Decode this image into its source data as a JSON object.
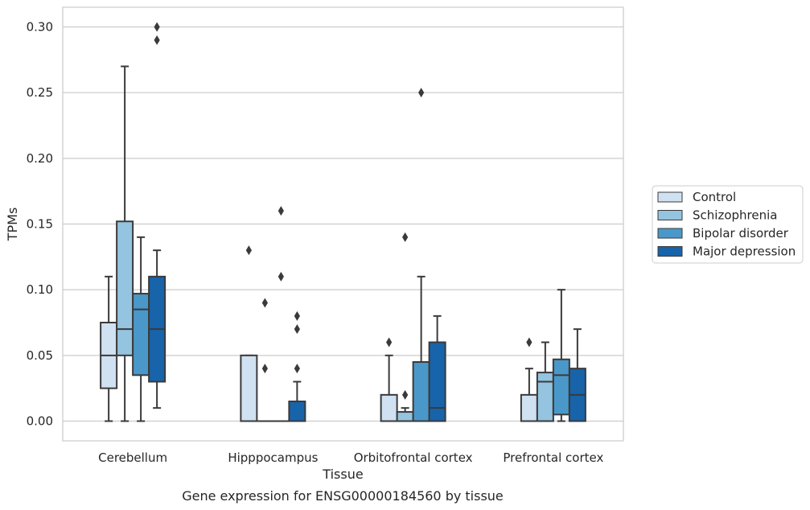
{
  "chart_data": {
    "type": "box",
    "caption": "Gene expression for ENSG00000184560 by tissue",
    "xlabel": "Tissue",
    "ylabel": "TPMs",
    "ylim": [
      -0.015,
      0.315
    ],
    "yticks": [
      "0.00",
      "0.05",
      "0.10",
      "0.15",
      "0.20",
      "0.25",
      "0.30"
    ],
    "ytick_values": [
      0,
      0.05,
      0.1,
      0.15,
      0.2,
      0.25,
      0.3
    ],
    "grid": "horizontal",
    "legend_position": "right",
    "categories": [
      "Cerebellum",
      "Hipppocampus",
      "Orbitofrontal cortex",
      "Prefrontal cortex"
    ],
    "series": [
      {
        "name": "Control",
        "color": "#d0e1f2",
        "boxes": [
          {
            "whisker_low": 0,
            "q1": 0.025,
            "median": 0.05,
            "q3": 0.075,
            "whisker_high": 0.11,
            "outliers": []
          },
          {
            "whisker_low": 0,
            "q1": 0,
            "median": 0,
            "q3": 0.05,
            "whisker_high": 0.05,
            "outliers": [
              0.13
            ]
          },
          {
            "whisker_low": 0,
            "q1": 0,
            "median": 0,
            "q3": 0.02,
            "whisker_high": 0.05,
            "outliers": [
              0.06
            ]
          },
          {
            "whisker_low": 0,
            "q1": 0,
            "median": 0,
            "q3": 0.02,
            "whisker_high": 0.04,
            "outliers": [
              0.06
            ]
          }
        ]
      },
      {
        "name": "Schizophrenia",
        "color": "#94c4df",
        "boxes": [
          {
            "whisker_low": 0,
            "q1": 0.05,
            "median": 0.07,
            "q3": 0.152,
            "whisker_high": 0.27,
            "outliers": []
          },
          {
            "whisker_low": 0,
            "q1": 0,
            "median": 0,
            "q3": 0,
            "whisker_high": 0,
            "outliers": [
              0.09,
              0.04
            ]
          },
          {
            "whisker_low": 0,
            "q1": 0,
            "median": 0,
            "q3": 0.007,
            "whisker_high": 0.01,
            "outliers": [
              0.14,
              0.02
            ]
          },
          {
            "whisker_low": 0,
            "q1": 0,
            "median": 0.03,
            "q3": 0.037,
            "whisker_high": 0.06,
            "outliers": []
          }
        ]
      },
      {
        "name": "Bipolar disorder",
        "color": "#4a98c9",
        "boxes": [
          {
            "whisker_low": 0,
            "q1": 0.035,
            "median": 0.085,
            "q3": 0.097,
            "whisker_high": 0.14,
            "outliers": []
          },
          {
            "whisker_low": 0,
            "q1": 0,
            "median": 0,
            "q3": 0,
            "whisker_high": 0,
            "outliers": [
              0.16,
              0.11
            ]
          },
          {
            "whisker_low": 0,
            "q1": 0,
            "median": 0,
            "q3": 0.045,
            "whisker_high": 0.11,
            "outliers": [
              0.25
            ]
          },
          {
            "whisker_low": 0,
            "q1": 0.005,
            "median": 0.035,
            "q3": 0.047,
            "whisker_high": 0.1,
            "outliers": []
          }
        ]
      },
      {
        "name": "Major depression",
        "color": "#1764ab",
        "boxes": [
          {
            "whisker_low": 0.01,
            "q1": 0.03,
            "median": 0.07,
            "q3": 0.11,
            "whisker_high": 0.13,
            "outliers": [
              0.3,
              0.29
            ]
          },
          {
            "whisker_low": 0,
            "q1": 0,
            "median": 0,
            "q3": 0.015,
            "whisker_high": 0.03,
            "outliers": [
              0.08,
              0.07,
              0.04
            ]
          },
          {
            "whisker_low": 0,
            "q1": 0,
            "median": 0.01,
            "q3": 0.06,
            "whisker_high": 0.08,
            "outliers": []
          },
          {
            "whisker_low": 0,
            "q1": 0,
            "median": 0.02,
            "q3": 0.04,
            "whisker_high": 0.07,
            "outliers": []
          }
        ]
      }
    ]
  }
}
